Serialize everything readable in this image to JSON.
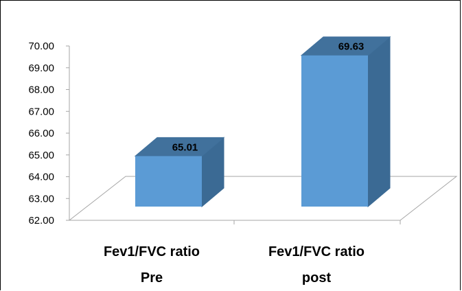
{
  "chart_data": {
    "type": "bar",
    "categories": [
      [
        "Fev1/FVC ratio",
        "Pre"
      ],
      [
        "Fev1/FVC ratio",
        "post"
      ]
    ],
    "values": [
      65.01,
      69.63
    ],
    "value_labels": [
      "65.01",
      "69.63"
    ],
    "ylim": [
      62,
      70
    ],
    "yticks": [
      "62.00",
      "63.00",
      "64.00",
      "65.00",
      "66.00",
      "67.00",
      "68.00",
      "69.00",
      "70.00"
    ],
    "title": "",
    "xlabel": "",
    "ylabel": "",
    "grid": false,
    "legend": "none",
    "style": "3d-column"
  },
  "colors": {
    "bar_front": "#5b9bd5",
    "bar_top": "#41719c",
    "bar_side": "#3b6a94",
    "axis": "#a6a6a6"
  }
}
